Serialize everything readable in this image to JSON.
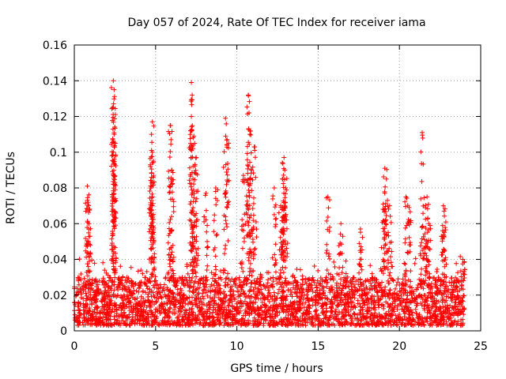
{
  "chart_data": {
    "type": "scatter",
    "title": "Day 057 of 2024, Rate Of TEC Index for receiver iama",
    "xlabel": "GPS time / hours",
    "ylabel": "ROTI / TECUs",
    "xlim": [
      0,
      25
    ],
    "ylim": [
      0,
      0.16
    ],
    "xticks": [
      0,
      5,
      10,
      15,
      20,
      25
    ],
    "xtick_labels": [
      "0",
      "5",
      "10",
      "15",
      "20",
      "25"
    ],
    "yticks": [
      0,
      0.02,
      0.04,
      0.06,
      0.08,
      0.1,
      0.12,
      0.14,
      0.16
    ],
    "ytick_labels": [
      "0",
      "0.02",
      "0.04",
      "0.06",
      "0.08",
      "0.1",
      "0.12",
      "0.14",
      "0.16"
    ],
    "grid": true,
    "marker": "+",
    "marker_color": "#ff0000",
    "series": [
      {
        "name": "ROTI",
        "base_band": [
          0.003,
          0.03
        ],
        "notable_points": [
          {
            "x": 2.4,
            "y": 0.14
          },
          {
            "x": 2.45,
            "y": 0.135
          },
          {
            "x": 2.4,
            "y": 0.125
          },
          {
            "x": 2.45,
            "y": 0.11
          },
          {
            "x": 2.4,
            "y": 0.1
          },
          {
            "x": 2.45,
            "y": 0.087
          },
          {
            "x": 0.8,
            "y": 0.081
          },
          {
            "x": 0.85,
            "y": 0.072
          },
          {
            "x": 0.9,
            "y": 0.06
          },
          {
            "x": 4.8,
            "y": 0.117
          },
          {
            "x": 4.75,
            "y": 0.11
          },
          {
            "x": 4.8,
            "y": 0.1
          },
          {
            "x": 4.7,
            "y": 0.08
          },
          {
            "x": 4.8,
            "y": 0.07
          },
          {
            "x": 5.9,
            "y": 0.115
          },
          {
            "x": 5.95,
            "y": 0.107
          },
          {
            "x": 6.0,
            "y": 0.09
          },
          {
            "x": 7.2,
            "y": 0.139
          },
          {
            "x": 7.25,
            "y": 0.132
          },
          {
            "x": 7.2,
            "y": 0.12
          },
          {
            "x": 7.4,
            "y": 0.105
          },
          {
            "x": 7.5,
            "y": 0.097
          },
          {
            "x": 7.3,
            "y": 0.085
          },
          {
            "x": 8.1,
            "y": 0.077
          },
          {
            "x": 8.7,
            "y": 0.08
          },
          {
            "x": 9.3,
            "y": 0.119
          },
          {
            "x": 9.4,
            "y": 0.107
          },
          {
            "x": 10.7,
            "y": 0.132
          },
          {
            "x": 10.75,
            "y": 0.122
          },
          {
            "x": 10.8,
            "y": 0.11
          },
          {
            "x": 10.9,
            "y": 0.09
          },
          {
            "x": 11.1,
            "y": 0.103
          },
          {
            "x": 10.4,
            "y": 0.087
          },
          {
            "x": 12.9,
            "y": 0.097
          },
          {
            "x": 12.95,
            "y": 0.09
          },
          {
            "x": 12.8,
            "y": 0.085
          },
          {
            "x": 13.0,
            "y": 0.08
          },
          {
            "x": 12.3,
            "y": 0.08
          },
          {
            "x": 12.7,
            "y": 0.07
          },
          {
            "x": 15.6,
            "y": 0.075
          },
          {
            "x": 16.4,
            "y": 0.06
          },
          {
            "x": 17.6,
            "y": 0.057
          },
          {
            "x": 19.1,
            "y": 0.091
          },
          {
            "x": 19.2,
            "y": 0.085
          },
          {
            "x": 19.0,
            "y": 0.071
          },
          {
            "x": 19.4,
            "y": 0.07
          },
          {
            "x": 20.4,
            "y": 0.075
          },
          {
            "x": 20.6,
            "y": 0.069
          },
          {
            "x": 21.4,
            "y": 0.111
          },
          {
            "x": 21.7,
            "y": 0.075
          },
          {
            "x": 21.6,
            "y": 0.069
          },
          {
            "x": 21.8,
            "y": 0.06
          },
          {
            "x": 22.7,
            "y": 0.07
          },
          {
            "x": 22.75,
            "y": 0.067
          },
          {
            "x": 23.9,
            "y": 0.04
          }
        ]
      }
    ]
  }
}
